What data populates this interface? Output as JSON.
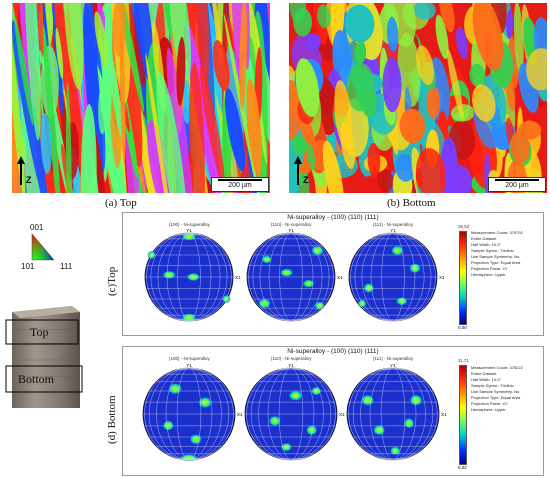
{
  "ebsd_maps": [
    {
      "caption": "(a) Top",
      "scale_label": "200 µm",
      "axis_label": "Z"
    },
    {
      "caption": "(b) Bottom",
      "scale_label": "200 µm",
      "axis_label": "Z"
    }
  ],
  "ipf_key": {
    "top": "001",
    "left": "101",
    "right": "111"
  },
  "sample_photo": {
    "top_label": "Top",
    "bottom_label": "Bottom"
  },
  "pole_figures": [
    {
      "side_label": "(c)Top",
      "title": "Ni-superalloy - (100) (110) (111)",
      "subtitles": [
        "{100} - Ni-superalloy",
        "{110} - Ni-superalloy",
        "{111} - Ni-superalloy"
      ],
      "y_label": "Y1",
      "x_label": "X1",
      "info": [
        "Measurement Count: 379792",
        "Entire Dataset",
        "Half Width: 10.0°",
        "Sample Symm.: Triclinic",
        "Use Sample Symmetry: No",
        "Projection Type: Equal Area",
        "Projection Plane: XY",
        "Hemisphere: Upper"
      ],
      "max": "26.52",
      "min": "0.00"
    },
    {
      "side_label": "(d) Bottom",
      "title": "Ni-superalloy - (100) (110) (111)",
      "subtitles": [
        "{100} - Ni-superalloy",
        "{110} - Ni-superalloy",
        "{111} - Ni-superalloy"
      ],
      "y_label": "Y1",
      "x_label": "X1",
      "info": [
        "Measurement Count: 375222",
        "Entire Dataset",
        "Half Width: 10.0°",
        "Sample Symm.: Triclinic",
        "Use Sample Symmetry: No",
        "Projection Type: Equal Area",
        "Projection Plane: XY",
        "Hemisphere: Upper"
      ],
      "max": "11.71",
      "min": "0.02"
    }
  ]
}
